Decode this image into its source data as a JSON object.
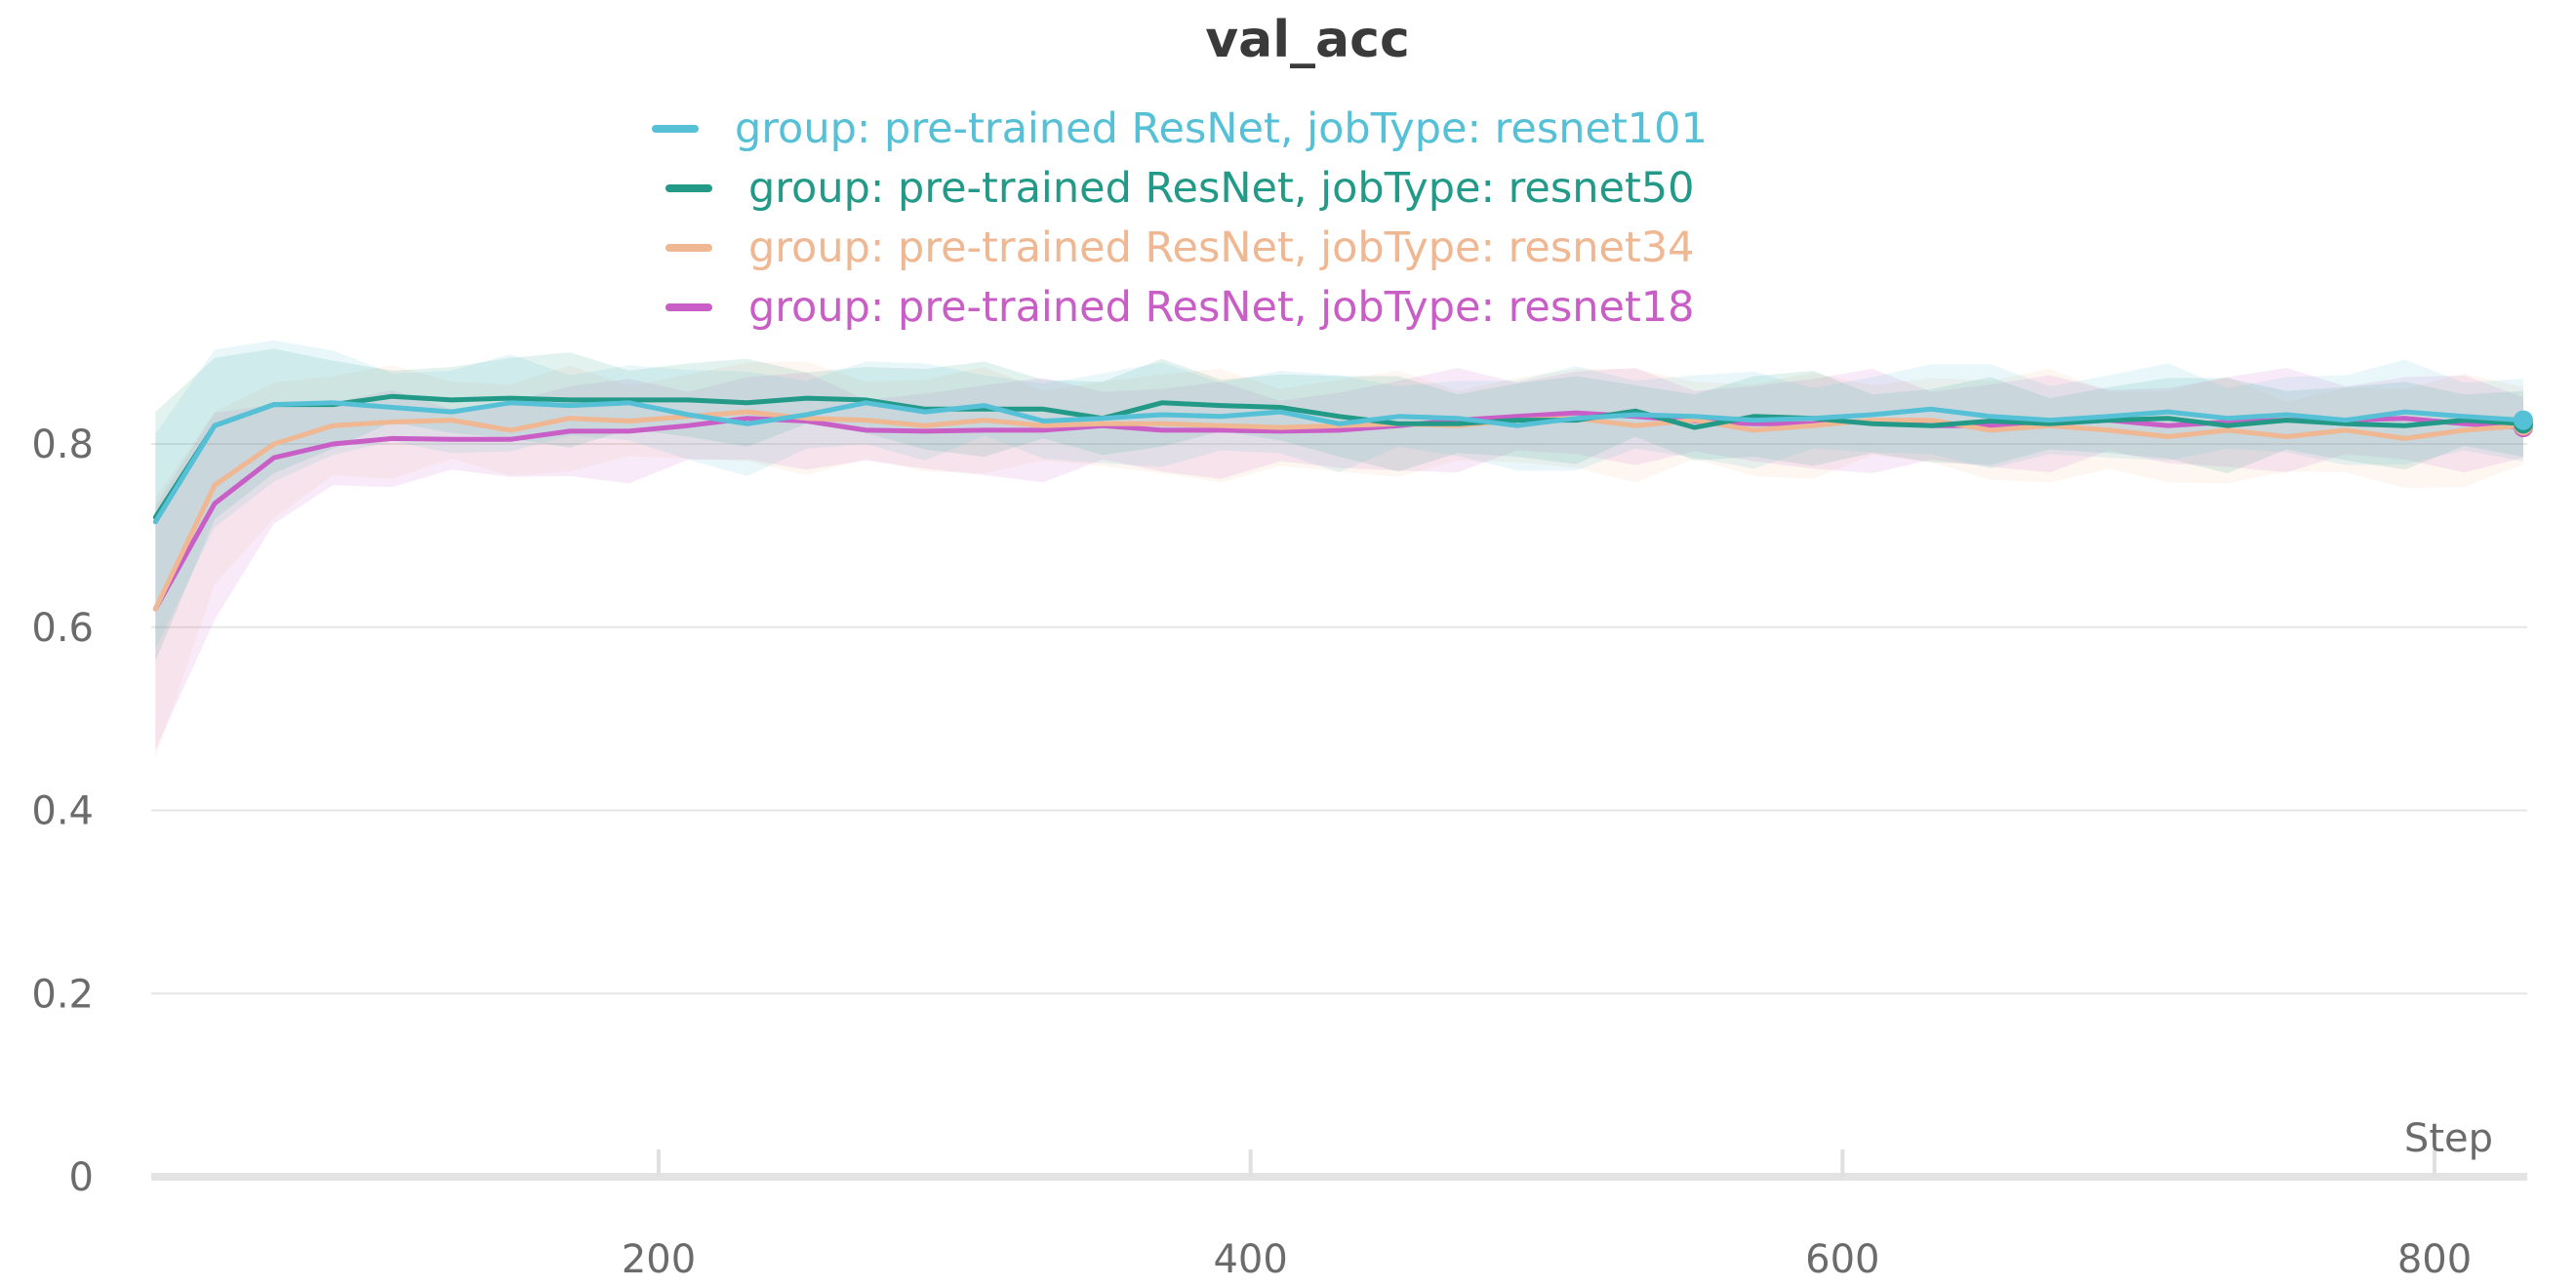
{
  "chart_data": {
    "type": "line",
    "title": "val_acc",
    "xlabel": "Step",
    "ylabel": "",
    "xlim": [
      0,
      830
    ],
    "ylim": [
      0,
      0.9
    ],
    "x_ticks": [
      200,
      400,
      600,
      800
    ],
    "y_ticks": [
      0,
      0.2,
      0.4,
      0.6,
      0.8
    ],
    "y_tick_labels": [
      "0",
      "0.2",
      "0.4",
      "0.6",
      "0.8"
    ],
    "x_tick_labels": [
      "200",
      "400",
      "600",
      "800"
    ],
    "grid": true,
    "legend_placement": "top-center",
    "x": [
      30,
      50,
      70,
      90,
      110,
      130,
      150,
      170,
      190,
      210,
      230,
      250,
      270,
      290,
      310,
      330,
      350,
      370,
      390,
      410,
      430,
      450,
      470,
      490,
      510,
      530,
      550,
      570,
      590,
      610,
      630,
      650,
      670,
      690,
      710,
      730,
      750,
      770,
      790,
      810,
      830
    ],
    "series": [
      {
        "name": "group: pre-trained ResNet, jobType: resnet101",
        "color": "#55c0d6",
        "values": [
          0.715,
          0.82,
          0.843,
          0.845,
          0.84,
          0.835,
          0.845,
          0.842,
          0.845,
          0.832,
          0.822,
          0.832,
          0.845,
          0.835,
          0.842,
          0.825,
          0.828,
          0.832,
          0.83,
          0.835,
          0.822,
          0.83,
          0.828,
          0.82,
          0.828,
          0.832,
          0.83,
          0.826,
          0.828,
          0.832,
          0.838,
          0.83,
          0.826,
          0.83,
          0.835,
          0.828,
          0.832,
          0.826,
          0.835,
          0.83,
          0.826
        ],
        "band_spread": 0.045
      },
      {
        "name": "group: pre-trained ResNet, jobType: resnet50",
        "color": "#229a87",
        "values": [
          0.72,
          0.82,
          0.843,
          0.843,
          0.852,
          0.848,
          0.85,
          0.848,
          0.848,
          0.848,
          0.845,
          0.85,
          0.848,
          0.838,
          0.838,
          0.838,
          0.828,
          0.845,
          0.842,
          0.84,
          0.83,
          0.822,
          0.822,
          0.826,
          0.826,
          0.836,
          0.818,
          0.83,
          0.828,
          0.822,
          0.82,
          0.825,
          0.822,
          0.826,
          0.828,
          0.82,
          0.826,
          0.822,
          0.82,
          0.826,
          0.822
        ],
        "band_spread": 0.04
      },
      {
        "name": "group: pre-trained ResNet, jobType: resnet34",
        "color": "#efb792",
        "values": [
          0.62,
          0.755,
          0.8,
          0.82,
          0.824,
          0.826,
          0.815,
          0.828,
          0.825,
          0.83,
          0.835,
          0.828,
          0.826,
          0.82,
          0.826,
          0.82,
          0.822,
          0.822,
          0.82,
          0.818,
          0.82,
          0.822,
          0.82,
          0.826,
          0.828,
          0.82,
          0.826,
          0.815,
          0.82,
          0.826,
          0.826,
          0.815,
          0.82,
          0.815,
          0.808,
          0.815,
          0.808,
          0.815,
          0.806,
          0.815,
          0.82
        ],
        "band_spread": 0.05
      },
      {
        "name": "group: pre-trained ResNet, jobType: resnet18",
        "color": "#c85ec6",
        "values": [
          0.62,
          0.735,
          0.785,
          0.8,
          0.806,
          0.805,
          0.805,
          0.814,
          0.814,
          0.82,
          0.828,
          0.825,
          0.815,
          0.814,
          0.815,
          0.815,
          0.82,
          0.815,
          0.815,
          0.814,
          0.815,
          0.82,
          0.826,
          0.83,
          0.834,
          0.83,
          0.825,
          0.822,
          0.822,
          0.825,
          0.82,
          0.82,
          0.822,
          0.826,
          0.82,
          0.824,
          0.826,
          0.826,
          0.828,
          0.822,
          0.818
        ],
        "band_spread": 0.045
      }
    ]
  }
}
